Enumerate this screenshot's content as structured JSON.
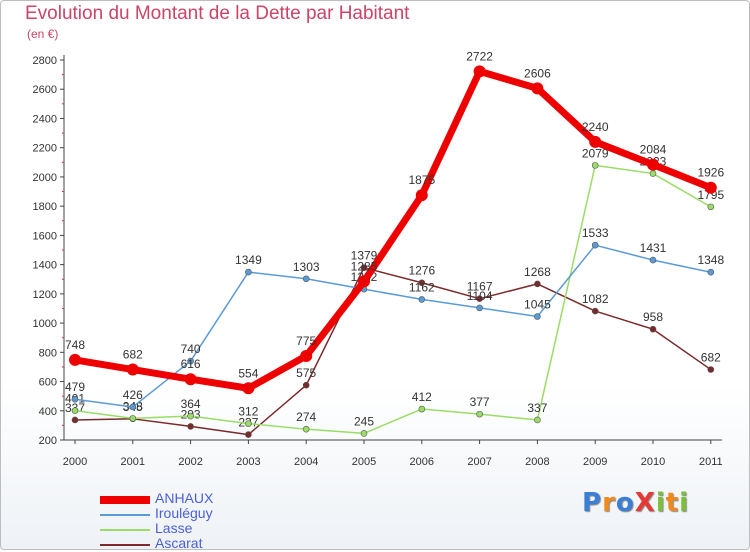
{
  "header": {
    "title": "Evolution du Montant de la Dette par Habitant",
    "subtitle": "(en €)"
  },
  "logo": {
    "text": "ProXiti"
  },
  "chart_data": {
    "type": "line",
    "title": "Evolution du Montant de la Dette par Habitant",
    "subtitle": "(en €)",
    "x": [
      "2000",
      "2001",
      "2002",
      "2003",
      "2004",
      "2005",
      "2006",
      "2007",
      "2008",
      "2009",
      "2010",
      "2011"
    ],
    "ylim": [
      200,
      2800
    ],
    "yticks": [
      200,
      400,
      600,
      800,
      1000,
      1200,
      1400,
      1600,
      1800,
      2000,
      2200,
      2400,
      2600,
      2800
    ],
    "grid": false,
    "legend_position": "bottom-left",
    "series": [
      {
        "name": "Ascarat",
        "color": "#7a2a2a",
        "width": 1.5,
        "values": [
          337,
          345,
          293,
          237,
          575,
          1379,
          1276,
          1167,
          1268,
          1082,
          958,
          682
        ]
      },
      {
        "name": "Lasse",
        "color": "#99dd66",
        "width": 1.5,
        "values": [
          401,
          348,
          364,
          312,
          274,
          245,
          412,
          377,
          337,
          2079,
          2023,
          1795
        ]
      },
      {
        "name": "Irouléguy",
        "color": "#5b9bd5",
        "width": 1.5,
        "values": [
          479,
          426,
          740,
          1349,
          1303,
          1232,
          1162,
          1104,
          1045,
          1533,
          1431,
          1348
        ]
      },
      {
        "name": "ANHAUX",
        "color": "#ee0000",
        "width": 7,
        "values": [
          748,
          682,
          616,
          554,
          775,
          1285,
          1875,
          2722,
          2606,
          2240,
          2084,
          1926
        ]
      }
    ]
  }
}
